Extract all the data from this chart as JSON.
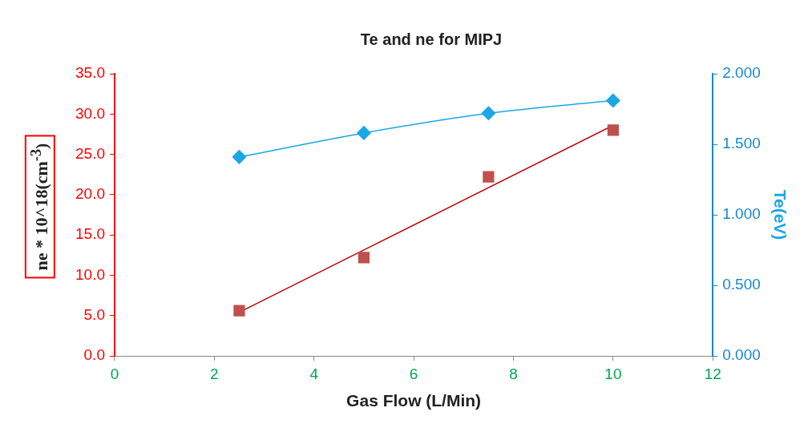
{
  "chart_data": {
    "type": "line",
    "title": "Te and ne for MIPJ",
    "xlabel": "Gas Flow (L/Min)",
    "ylabel": "ne * 10^18(cm$^{-3}$)",
    "y2label": "Te(eV)",
    "series": [
      {
        "type": "scatter",
        "marker": "square",
        "color": "#c0504d",
        "x": [
          2.5,
          5,
          7.5,
          10
        ],
        "values": [
          5.6,
          12.2,
          22.2,
          28.0
        ]
      },
      {
        "type": "line",
        "marker": "none",
        "color": "#c00000",
        "x": [
          2.5,
          10
        ],
        "values": [
          5.4,
          28.6
        ]
      },
      {
        "type": "line",
        "marker": "diamond",
        "axis": "y2",
        "color": "#1aa7e6",
        "x": [
          2.5,
          5,
          7.5,
          10
        ],
        "values": [
          1.41,
          1.58,
          1.72,
          1.81
        ]
      }
    ],
    "xlim": [
      0,
      12
    ],
    "xticks": [
      0,
      2,
      4,
      6,
      8,
      10,
      12
    ],
    "ylim": [
      0,
      35
    ],
    "yticks": [
      {
        "value": 0,
        "label": "0.0"
      },
      {
        "value": 5,
        "label": "5.0"
      },
      {
        "value": 10,
        "label": "10.0"
      },
      {
        "value": 15,
        "label": "15.0"
      },
      {
        "value": 20,
        "label": "20.0"
      },
      {
        "value": 25,
        "label": "25.0"
      },
      {
        "value": 30,
        "label": "30.0"
      },
      {
        "value": 35,
        "label": "35.0"
      }
    ],
    "y2lim": [
      0,
      2
    ],
    "y2ticks": [
      {
        "value": 0,
        "label": "0.000"
      },
      {
        "value": 0.5,
        "label": "0.500"
      },
      {
        "value": 1,
        "label": "1.000"
      },
      {
        "value": 1.5,
        "label": "1.500"
      },
      {
        "value": 2,
        "label": "2.000"
      }
    ],
    "grid": false,
    "legend": false
  }
}
